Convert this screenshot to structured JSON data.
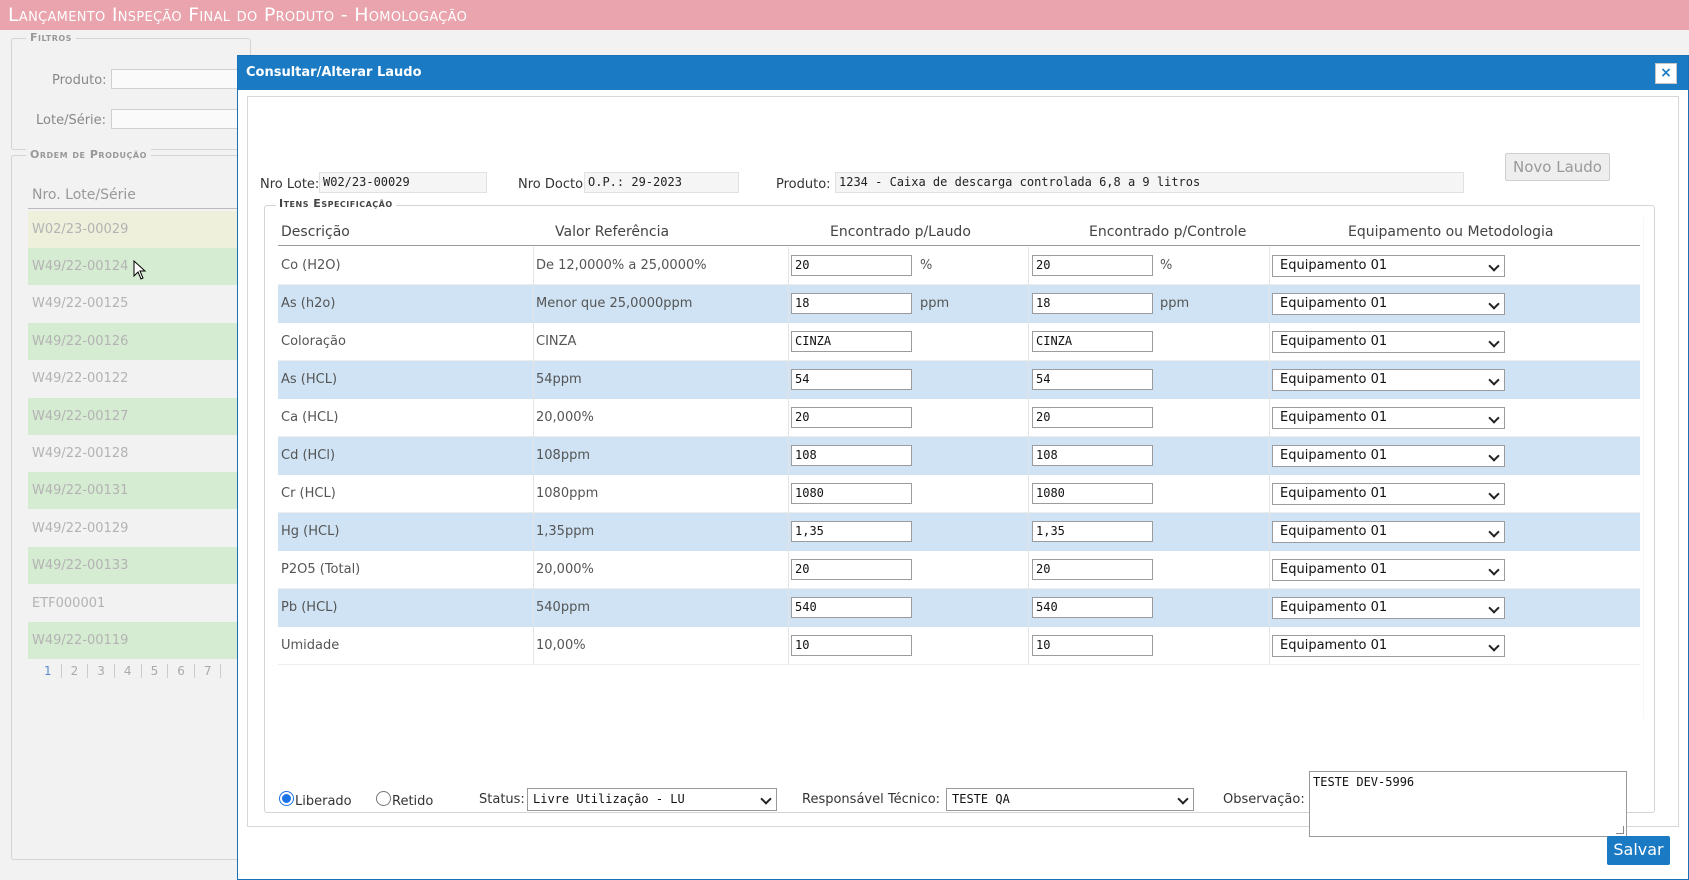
{
  "page": {
    "title": "Lançamento Inspeção Final do Produto  - Homologação"
  },
  "filters": {
    "legend": "Filtros",
    "produto_label": "Produto:",
    "lote_label": "Lote/Série:"
  },
  "ordem": {
    "legend": "Ordem de Produção",
    "column": "Nro. Lote/Série",
    "rows": [
      "W02/23-00029",
      "W49/22-00124",
      "W49/22-00125",
      "W49/22-00126",
      "W49/22-00122",
      "W49/22-00127",
      "W49/22-00128",
      "W49/22-00131",
      "W49/22-00129",
      "W49/22-00133",
      "ETF000001",
      "W49/22-00119"
    ],
    "pages": [
      "1",
      "2",
      "3",
      "4",
      "5",
      "6",
      "7"
    ]
  },
  "modal": {
    "title": "Consultar/Alterar Laudo",
    "close": "×",
    "nro_lote_label": "Nro Lote:",
    "nro_lote_value": "W02/23-00029",
    "nro_docto_label": "Nro Docto:",
    "nro_docto_value": "O.P.: 29-2023",
    "produto_label": "Produto:",
    "produto_value": "1234 - Caixa de descarga controlada 6,8 a 9 litros",
    "novo_laudo": "Novo Laudo",
    "itens_legend": "Itens Especificação",
    "columns": {
      "descricao": "Descrição",
      "valor_referencia": "Valor Referência",
      "encontrado_laudo": "Encontrado p/Laudo",
      "encontrado_controle": "Encontrado p/Controle",
      "equipamento": "Equipamento ou Metodologia"
    },
    "rows": [
      {
        "descricao": "Co (H2O)",
        "referencia": "De 12,0000% a 25,0000%",
        "laudo": "20",
        "controle": "20",
        "unit": "%",
        "equipamento": "Equipamento 01"
      },
      {
        "descricao": "As (h2o)",
        "referencia": "Menor que 25,0000ppm",
        "laudo": "18",
        "controle": "18",
        "unit": "ppm",
        "equipamento": "Equipamento 01"
      },
      {
        "descricao": "Coloração",
        "referencia": "CINZA",
        "laudo": "CINZA",
        "controle": "CINZA",
        "unit": "",
        "equipamento": "Equipamento 01"
      },
      {
        "descricao": "As (HCL)",
        "referencia": "54ppm",
        "laudo": "54",
        "controle": "54",
        "unit": "",
        "equipamento": "Equipamento 01"
      },
      {
        "descricao": "Ca (HCL)",
        "referencia": "20,000%",
        "laudo": "20",
        "controle": "20",
        "unit": "",
        "equipamento": "Equipamento 01"
      },
      {
        "descricao": "Cd (HCl)",
        "referencia": "108ppm",
        "laudo": "108",
        "controle": "108",
        "unit": "",
        "equipamento": "Equipamento 01"
      },
      {
        "descricao": "Cr (HCL)",
        "referencia": "1080ppm",
        "laudo": "1080",
        "controle": "1080",
        "unit": "",
        "equipamento": "Equipamento 01"
      },
      {
        "descricao": "Hg (HCL)",
        "referencia": "1,35ppm",
        "laudo": "1,35",
        "controle": "1,35",
        "unit": "",
        "equipamento": "Equipamento 01"
      },
      {
        "descricao": "P2O5 (Total)",
        "referencia": "20,000%",
        "laudo": "20",
        "controle": "20",
        "unit": "",
        "equipamento": "Equipamento 01"
      },
      {
        "descricao": "Pb (HCL)",
        "referencia": "540ppm",
        "laudo": "540",
        "controle": "540",
        "unit": "",
        "equipamento": "Equipamento 01"
      },
      {
        "descricao": "Umidade",
        "referencia": "10,00%",
        "laudo": "10",
        "controle": "10",
        "unit": "",
        "equipamento": "Equipamento 01"
      }
    ],
    "liberado_label": "Liberado",
    "retido_label": "Retido",
    "status_label": "Status:",
    "status_value": "Livre Utilização - LU",
    "responsavel_label": "Responsável Técnico:",
    "responsavel_value": "TESTE QA",
    "observacao_label": "Observação:",
    "observacao_value": "TESTE DEV-5996",
    "salvar": "Salvar"
  }
}
